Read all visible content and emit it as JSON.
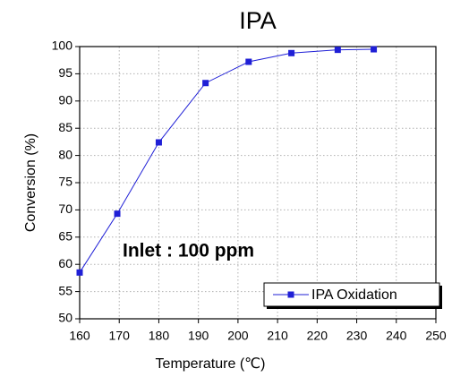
{
  "chart_data": {
    "type": "line",
    "title": "IPA",
    "xlabel": "Temperature (℃)",
    "ylabel": "Conversion (%)",
    "x": [
      160,
      169.5,
      180,
      191.8,
      202.7,
      213.5,
      225.2,
      234.3
    ],
    "series": [
      {
        "name": "IPA Oxidation",
        "color": "#1f1fd6",
        "values": [
          58.5,
          69.3,
          82.4,
          93.3,
          97.2,
          98.8,
          99.4,
          99.5
        ]
      }
    ],
    "xlim": [
      160,
      250
    ],
    "xticks": [
      160,
      170,
      180,
      190,
      200,
      210,
      220,
      230,
      240,
      250
    ],
    "ylim": [
      50,
      100
    ],
    "yticks": [
      50,
      55,
      60,
      65,
      70,
      75,
      80,
      85,
      90,
      95,
      100
    ],
    "grid": true,
    "legend": "lower right",
    "annotation": {
      "text": "Inlet : 100 ppm",
      "color": "#e8242a"
    }
  }
}
